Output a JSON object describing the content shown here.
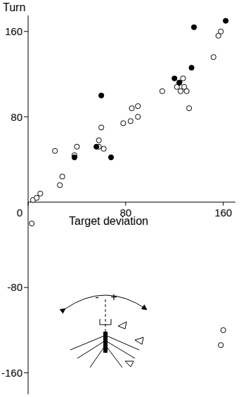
{
  "chart_data": {
    "type": "scatter",
    "x_label": "Target deviation",
    "y_label": "Turn",
    "xlim": [
      0,
      170
    ],
    "ylim": [
      -180,
      175
    ],
    "xticks": [
      0,
      80,
      160
    ],
    "yticks": [
      -160,
      -80,
      80,
      160
    ],
    "annotations": [
      "-",
      "+"
    ],
    "series": [
      {
        "marker": "open",
        "color": "#000000",
        "x": [
          3,
          4,
          7,
          10,
          22,
          26,
          28,
          38,
          40,
          58,
          58,
          60,
          62,
          78,
          84,
          85,
          90,
          90,
          110,
          122,
          124,
          125,
          127,
          128,
          130,
          132,
          152,
          156,
          158,
          160,
          158
        ],
        "y": [
          -20,
          2,
          4,
          8,
          48,
          16,
          24,
          44,
          52,
          52,
          58,
          70,
          50,
          74,
          76,
          88,
          90,
          80,
          104,
          108,
          112,
          104,
          116,
          108,
          104,
          88,
          136,
          156,
          160,
          -120,
          -134
        ]
      },
      {
        "marker": "filled",
        "color": "#000000",
        "x": [
          38,
          56,
          60,
          68,
          120,
          124,
          134,
          136,
          162
        ],
        "y": [
          42,
          52,
          100,
          42,
          116,
          112,
          126,
          164,
          170
        ]
      }
    ]
  }
}
